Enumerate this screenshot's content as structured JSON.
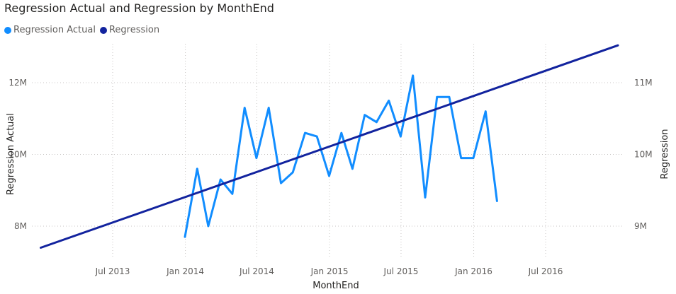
{
  "chart_data": {
    "type": "line",
    "title": "Regression Actual and Regression by MonthEnd",
    "xlabel": "MonthEnd",
    "ylabel": "Regression Actual",
    "y2label": "Regression",
    "legend_position": "top-left",
    "grid": true,
    "x_ticks": [
      "Jul 2013",
      "Jan 2014",
      "Jul 2014",
      "Jan 2015",
      "Jul 2015",
      "Jan 2016",
      "Jul 2016"
    ],
    "y_ticks": [
      "8M",
      "10M",
      "12M"
    ],
    "y2_ticks": [
      "9M",
      "10M",
      "11M"
    ],
    "ylim": [
      7.4,
      13.2
    ],
    "y2lim": [
      8.7,
      11.6
    ],
    "series": [
      {
        "name": "Regression Actual",
        "axis": "left",
        "color": "#118dff",
        "x": [
          "2013-12-31",
          "2014-01-31",
          "2014-02-28",
          "2014-03-31",
          "2014-04-30",
          "2014-05-31",
          "2014-06-30",
          "2014-07-31",
          "2014-08-31",
          "2014-09-30",
          "2014-10-31",
          "2014-11-30",
          "2014-12-31",
          "2015-01-31",
          "2015-02-28",
          "2015-03-31",
          "2015-04-30",
          "2015-05-31",
          "2015-06-30",
          "2015-07-31",
          "2015-08-31",
          "2015-09-30",
          "2015-10-31",
          "2015-11-30",
          "2015-12-31",
          "2016-01-31",
          "2016-02-29"
        ],
        "values": [
          7.7,
          9.6,
          8.0,
          9.3,
          8.9,
          11.3,
          9.9,
          11.3,
          9.2,
          9.5,
          10.6,
          10.5,
          9.4,
          10.6,
          9.6,
          11.1,
          10.9,
          11.5,
          10.5,
          12.2,
          8.8,
          11.6,
          11.6,
          9.9,
          9.9,
          11.2,
          8.7
        ]
      },
      {
        "name": "Regression",
        "axis": "right",
        "color": "#12239e",
        "x": [
          "2012-12-31",
          "2016-12-31"
        ],
        "values": [
          8.7,
          11.52
        ]
      }
    ]
  }
}
